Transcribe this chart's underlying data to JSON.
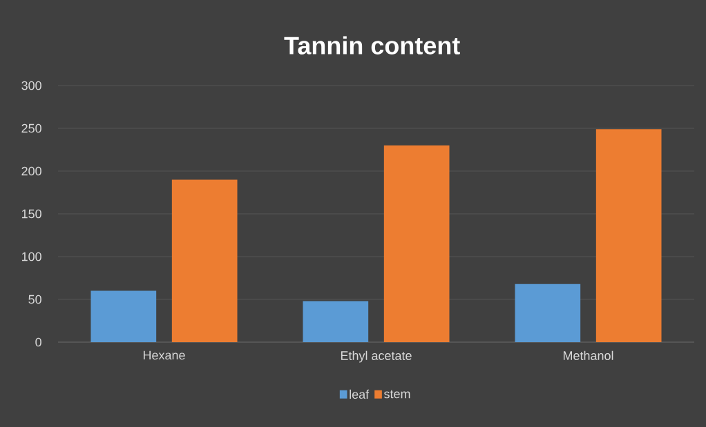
{
  "chart_data": {
    "type": "bar",
    "title": "Tannin content",
    "categories": [
      "Hexane",
      "Ethyl acetate",
      "Methanol"
    ],
    "series": [
      {
        "name": "leaf",
        "color": "#5b9bd5",
        "values": [
          60,
          48,
          68
        ]
      },
      {
        "name": "stem",
        "color": "#ed7d31",
        "values": [
          190,
          230,
          249
        ]
      }
    ],
    "ylim": [
      0,
      300
    ],
    "yticks": [
      0,
      50,
      100,
      150,
      200,
      250,
      300
    ],
    "grid": "y",
    "legend": "bottom"
  }
}
